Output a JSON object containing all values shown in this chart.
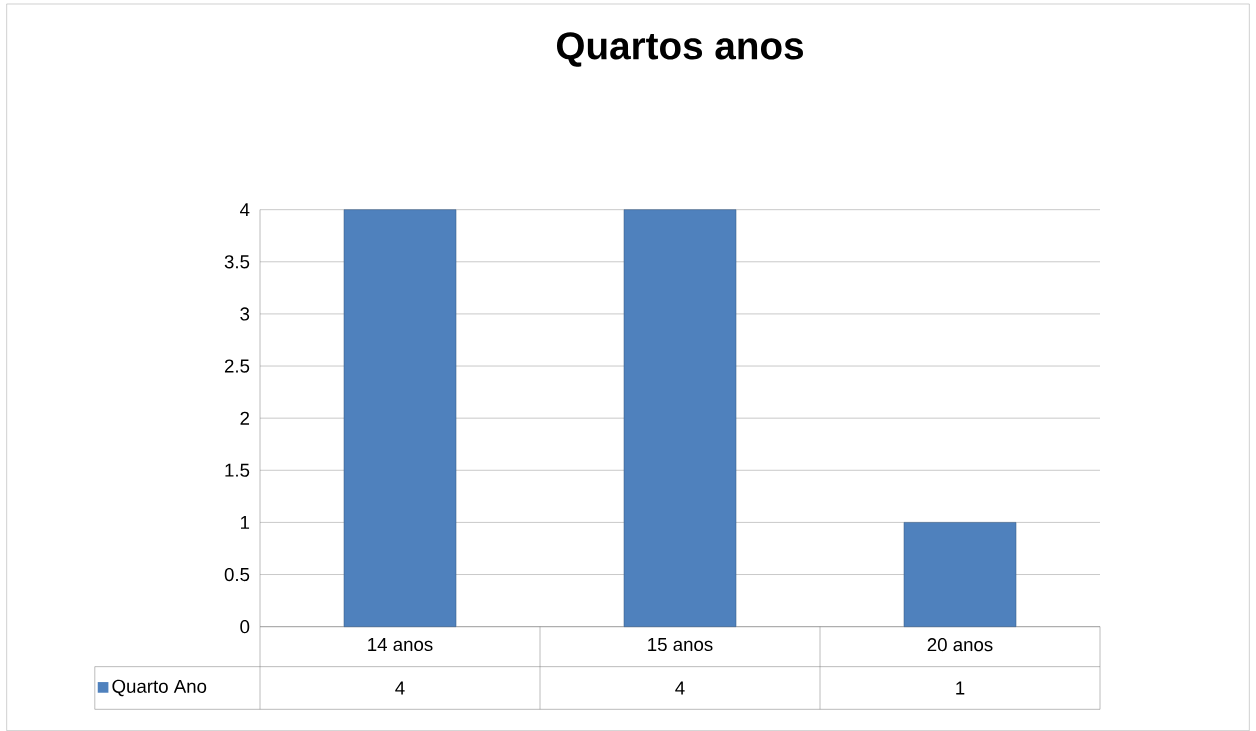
{
  "chart_data": {
    "type": "bar",
    "title": "Quartos anos",
    "categories": [
      "14 anos",
      "15 anos",
      "20 anos"
    ],
    "series": [
      {
        "name": "Quarto Ano",
        "color": "#4f81bd",
        "values": [
          4,
          4,
          1
        ]
      }
    ],
    "ylim": [
      0,
      4
    ],
    "yticks": [
      0,
      0.5,
      1,
      1.5,
      2,
      2.5,
      3,
      3.5,
      4
    ],
    "grid": "y",
    "data_labels": true,
    "legend": "bottom left"
  }
}
